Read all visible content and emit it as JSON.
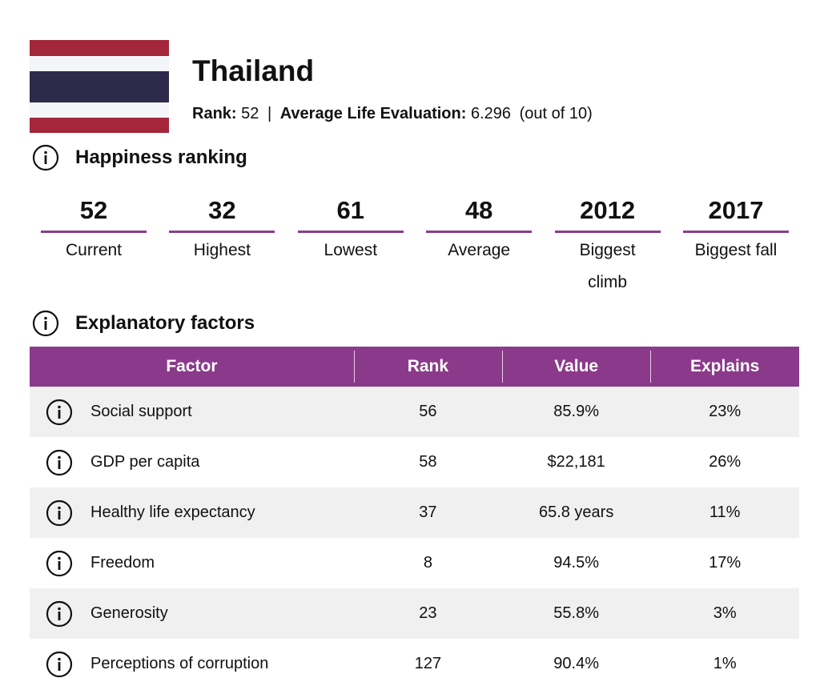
{
  "header": {
    "title": "Thailand",
    "rank_label": "Rank:",
    "rank": 52,
    "separator": "|",
    "evaluation_label": "Average Life Evaluation:",
    "evaluation": 6.296,
    "evaluation_note": "(out of 10)"
  },
  "ranking": {
    "heading": "Happiness ranking",
    "items": [
      {
        "value": 52,
        "label": "Current"
      },
      {
        "value": 32,
        "label": "Highest"
      },
      {
        "value": 61,
        "label": "Lowest"
      },
      {
        "value": 48,
        "label": "Average"
      },
      {
        "value": 2012,
        "label": "Biggest climb"
      },
      {
        "value": 2017,
        "label": "Biggest fall"
      }
    ]
  },
  "factors": {
    "heading": "Explanatory factors",
    "columns": [
      "Factor",
      "Rank",
      "Value",
      "Explains"
    ],
    "rows": [
      [
        "Social support",
        56,
        "85.9%",
        "23%"
      ],
      [
        "GDP per capita",
        58,
        "$22,181",
        "26%"
      ],
      [
        "Healthy life expectancy",
        37,
        "65.8 years",
        "11%"
      ],
      [
        "Freedom",
        8,
        "94.5%",
        "17%"
      ],
      [
        "Generosity",
        23,
        "55.8%",
        "3%"
      ],
      [
        "Perceptions of corruption",
        127,
        "90.4%",
        "1%"
      ]
    ]
  }
}
